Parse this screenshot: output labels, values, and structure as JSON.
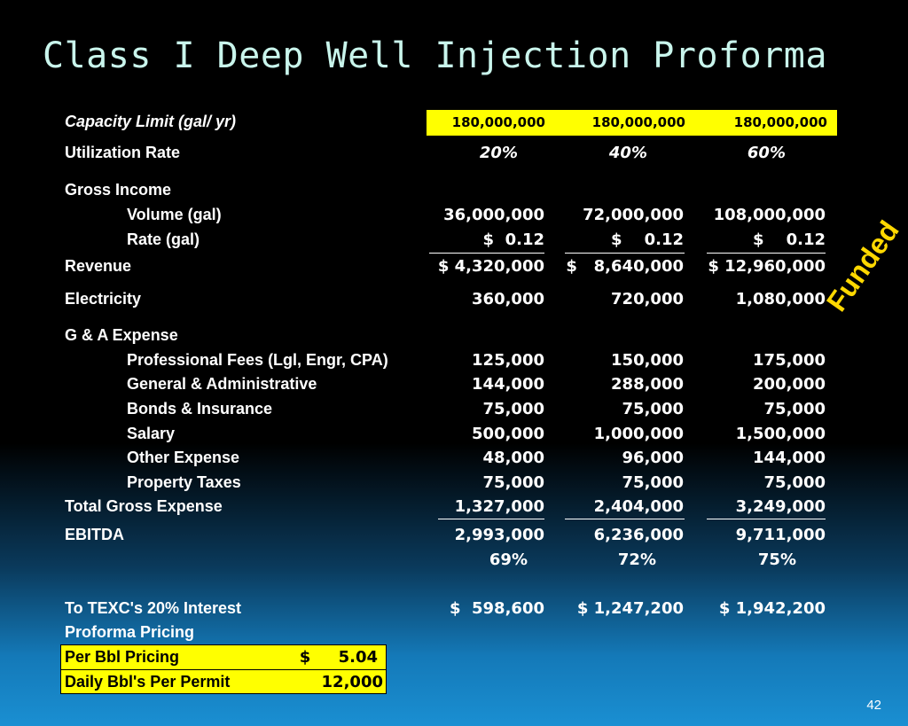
{
  "title": "Class I Deep Well Injection Proforma",
  "capacity": {
    "label": "Capacity Limit (gal/ yr)",
    "values": [
      "180,000,000",
      "180,000,000",
      "180,000,000"
    ]
  },
  "utilization": {
    "label": "Utilization Rate",
    "values": [
      "20%",
      "40%",
      "60%"
    ]
  },
  "gross_income": {
    "label": "Gross Income",
    "volume": {
      "label": "Volume (gal)",
      "values": [
        "36,000,000",
        "72,000,000",
        "108,000,000"
      ]
    },
    "rate": {
      "label": "Rate (gal)",
      "values": [
        "$  0.12",
        "$    0.12",
        "$    0.12"
      ]
    }
  },
  "revenue": {
    "label": "Revenue",
    "values": [
      "$ 4,320,000",
      "$   8,640,000",
      "$ 12,960,000"
    ]
  },
  "electricity": {
    "label": "Electricity",
    "values": [
      "360,000",
      "720,000",
      "1,080,000"
    ]
  },
  "ga_expense": {
    "label": "G & A Expense",
    "rows": [
      {
        "label": "Professional Fees (Lgl, Engr, CPA)",
        "values": [
          "125,000",
          "150,000",
          "175,000"
        ]
      },
      {
        "label": "General & Administrative",
        "values": [
          "144,000",
          "288,000",
          "200,000"
        ]
      },
      {
        "label": "Bonds & Insurance",
        "values": [
          "75,000",
          "75,000",
          "75,000"
        ]
      },
      {
        "label": "Salary",
        "values": [
          "500,000",
          "1,000,000",
          "1,500,000"
        ]
      },
      {
        "label": "Other Expense",
        "values": [
          "48,000",
          "96,000",
          "144,000"
        ]
      },
      {
        "label": "Property Taxes",
        "values": [
          "75,000",
          "75,000",
          "75,000"
        ]
      }
    ]
  },
  "total_expense": {
    "label": "Total Gross Expense",
    "values": [
      "1,327,000",
      "2,404,000",
      "3,249,000"
    ]
  },
  "ebitda": {
    "label": "EBITDA",
    "values": [
      "2,993,000",
      "6,236,000",
      "9,711,000"
    ],
    "margins": [
      "69%",
      "72%",
      "75%"
    ]
  },
  "interest": {
    "label": "To TEXC's 20% Interest",
    "values": [
      "$  598,600",
      "$ 1,247,200",
      "$ 1,942,200"
    ]
  },
  "proforma_pricing": {
    "label": "Proforma Pricing",
    "per_bbl": {
      "label": "Per Bbl Pricing",
      "value": "$     5.04"
    },
    "daily_bbl": {
      "label": "Daily Bbl's Per Permit",
      "value": "12,000"
    }
  },
  "stamp": "Funded",
  "page_number": "42",
  "colors": {
    "title": "#c9f5ec",
    "highlight": "#ffff00",
    "stamp": "#ffd800"
  }
}
